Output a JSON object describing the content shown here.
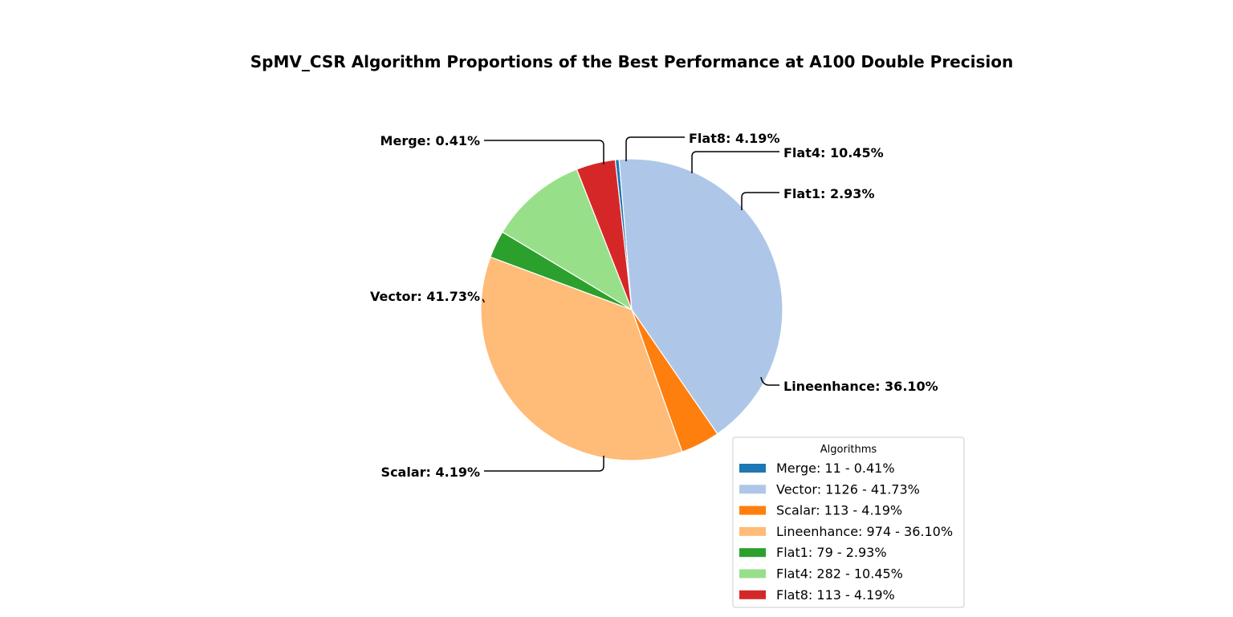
{
  "chart_data": {
    "type": "pie",
    "title": "SpMV_CSR Algorithm Proportions of the Best Performance at A100 Double Precision",
    "start_angle_deg": 96.3,
    "direction": "clockwise",
    "slices": [
      {
        "name": "Merge",
        "count": 11,
        "percent": 0.41,
        "color": "#1f77b4",
        "label": "Merge: 0.41%",
        "legend": "Merge: 11 - 0.41%"
      },
      {
        "name": "Vector",
        "count": 1126,
        "percent": 41.73,
        "color": "#aec7e8",
        "label": "Vector: 41.73%",
        "legend": "Vector: 1126 - 41.73%"
      },
      {
        "name": "Scalar",
        "count": 113,
        "percent": 4.19,
        "color": "#ff7f0e",
        "label": "Scalar: 4.19%",
        "legend": "Scalar: 113 - 4.19%"
      },
      {
        "name": "Lineenhance",
        "count": 974,
        "percent": 36.1,
        "color": "#ffbb78",
        "label": "Lineenhance: 36.10%",
        "legend": "Lineenhance: 974 - 36.10%"
      },
      {
        "name": "Flat1",
        "count": 79,
        "percent": 2.93,
        "color": "#2ca02c",
        "label": "Flat1: 2.93%",
        "legend": "Flat1: 79 - 2.93%"
      },
      {
        "name": "Flat4",
        "count": 282,
        "percent": 10.45,
        "color": "#98df8a",
        "label": "Flat4: 10.45%",
        "legend": "Flat4: 282 - 10.45%"
      },
      {
        "name": "Flat8",
        "count": 113,
        "percent": 4.19,
        "color": "#d62728",
        "label": "Flat8: 4.19%",
        "legend": "Flat8: 113 - 4.19%"
      }
    ],
    "legend": {
      "title": "Algorithms",
      "placement": "lower-right"
    }
  }
}
